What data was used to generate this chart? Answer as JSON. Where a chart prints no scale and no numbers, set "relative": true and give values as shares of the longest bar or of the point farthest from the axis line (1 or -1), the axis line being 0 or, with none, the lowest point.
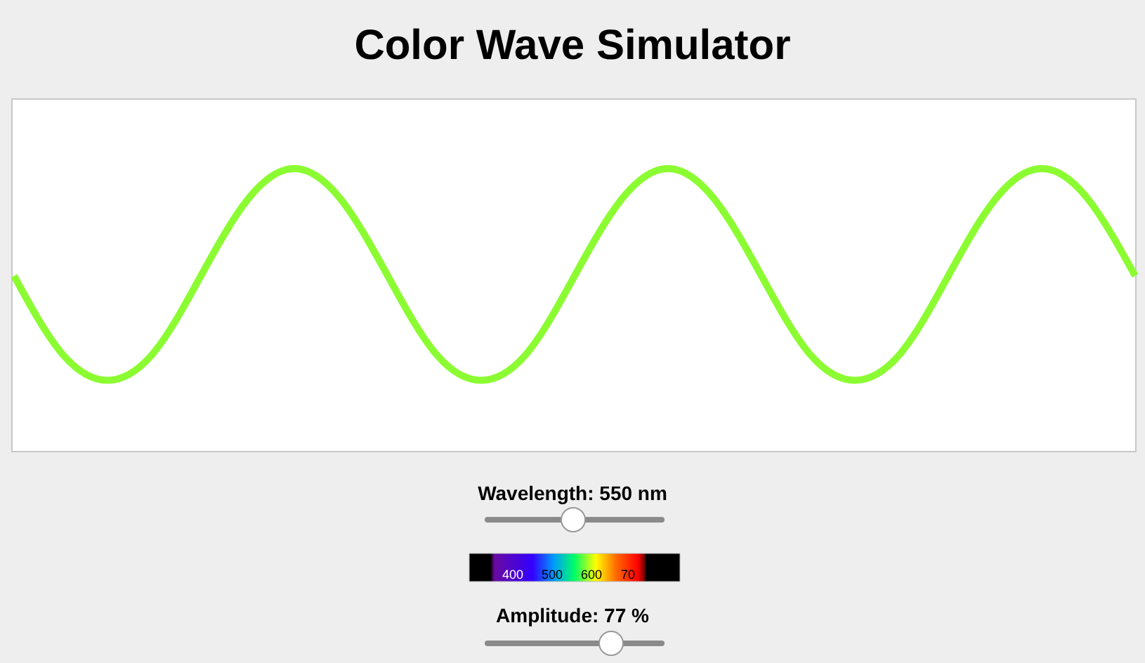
{
  "chart_data": {
    "type": "line",
    "title": "Color Wave Simulator",
    "relative": true,
    "categories": [
      null,
      null,
      null,
      null,
      null,
      null,
      null,
      null,
      null,
      null,
      null,
      null,
      null,
      null,
      null,
      null,
      null,
      null,
      null,
      null,
      null,
      null,
      null,
      null,
      null
    ],
    "series": [
      {
        "color": "#8cfc32",
        "values": [
          0.62,
          0.35,
          0.25,
          0.35,
          0.62,
          0.89,
          1,
          0.89,
          0.62,
          0.35,
          0.25,
          0.35,
          0.62,
          0.89,
          1,
          0.89,
          0.62,
          0.35,
          0.25,
          0.35,
          0.62,
          0.89,
          1,
          0.89,
          0.62
        ]
      }
    ],
    "annotations": [
      "Wavelength: 550 nm",
      "400",
      "500",
      "600",
      "70",
      "Amplitude: 77 %"
    ]
  }
}
